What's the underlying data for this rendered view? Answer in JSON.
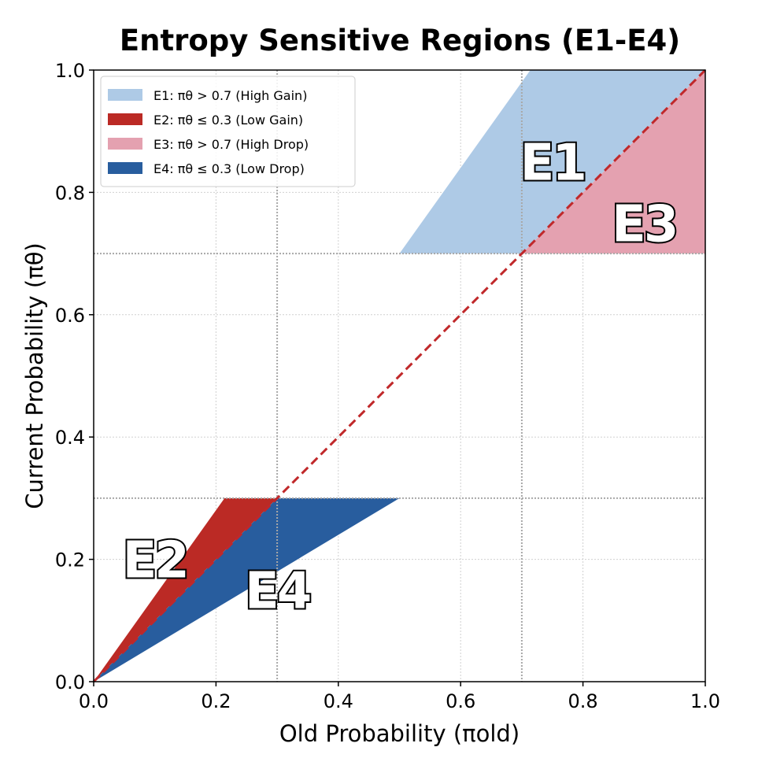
{
  "chart_data": {
    "type": "area",
    "title": "Entropy Sensitive Regions (E1-E4)",
    "xlabel": "Old Probability (πold)",
    "ylabel": "Current Probability (πθ)",
    "xlim": [
      0.0,
      1.0
    ],
    "ylim": [
      0.0,
      1.0
    ],
    "xticks": [
      "0.0",
      "0.2",
      "0.4",
      "0.6",
      "0.8",
      "1.0"
    ],
    "yticks": [
      "0.0",
      "0.2",
      "0.4",
      "0.6",
      "0.8",
      "1.0"
    ],
    "grid": true,
    "legend_location": "upper-left",
    "reference_lines": {
      "diagonal": {
        "from": [
          0,
          0
        ],
        "to": [
          1,
          1
        ],
        "style": "dashed",
        "color": "#c0282a"
      },
      "thresholds_x": [
        0.3,
        0.7
      ],
      "thresholds_y": [
        0.3,
        0.7
      ]
    },
    "regions": [
      {
        "id": "E1",
        "legend": "E1: πθ > 0.7 (High Gain)",
        "color": "#aecae6",
        "polygon": [
          [
            0.5,
            0.7
          ],
          [
            0.7,
            0.7
          ],
          [
            1.0,
            1.0
          ],
          [
            0.714,
            1.0
          ]
        ],
        "label": "E1",
        "label_pos": [
          0.75,
          0.85
        ]
      },
      {
        "id": "E2",
        "legend": "E2: πθ ≤ 0.3 (Low Gain)",
        "color": "#bb2a25",
        "polygon": [
          [
            0.0,
            0.0
          ],
          [
            0.3,
            0.3
          ],
          [
            0.214,
            0.3
          ]
        ],
        "label": "E2",
        "label_pos": [
          0.1,
          0.2
        ]
      },
      {
        "id": "E3",
        "legend": "E3: πθ > 0.7 (High Drop)",
        "color": "#e4a1b0",
        "polygon": [
          [
            0.7,
            0.7
          ],
          [
            1.0,
            0.7
          ],
          [
            1.0,
            1.0
          ]
        ],
        "label": "E3",
        "label_pos": [
          0.9,
          0.75
        ]
      },
      {
        "id": "E4",
        "legend": "E4: πθ ≤ 0.3 (Low Drop)",
        "color": "#285d9e",
        "polygon": [
          [
            0.0,
            0.0
          ],
          [
            0.5,
            0.3
          ],
          [
            0.3,
            0.3
          ]
        ],
        "label": "E4",
        "label_pos": [
          0.3,
          0.15
        ]
      }
    ]
  }
}
